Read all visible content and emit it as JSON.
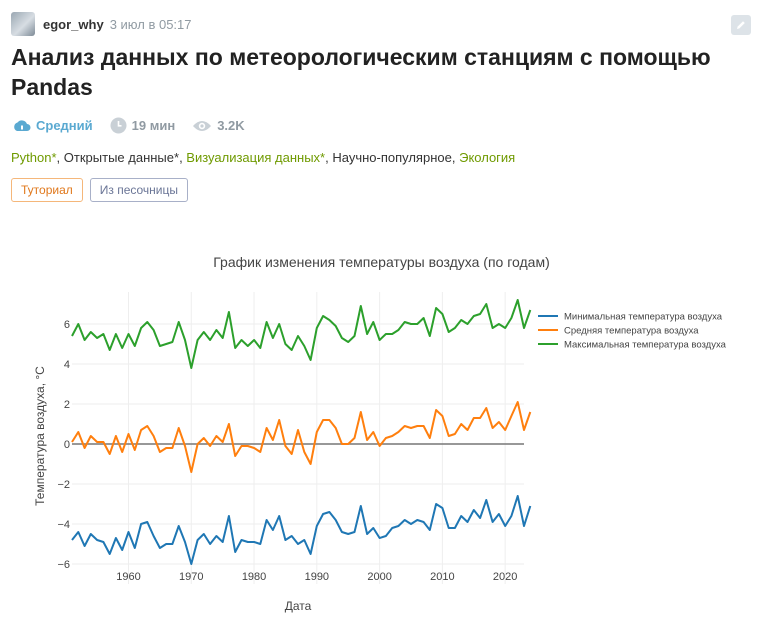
{
  "post": {
    "author": "egor_why",
    "time": "3 июл в 05:17",
    "title": "Анализ данных по метеорологическим станциям с помощью Pandas",
    "complexity": "Средний",
    "reading_time": "19 мин",
    "views": "3.2K",
    "hubs": [
      {
        "label": "Python*",
        "profiled": true
      },
      {
        "label": "Открытые данные*",
        "profiled": false
      },
      {
        "label": "Визуализация данных*",
        "profiled": true
      },
      {
        "label": "Научно-популярное",
        "profiled": false
      },
      {
        "label": "Экология",
        "profiled": true
      }
    ],
    "badges": [
      "Туториал",
      "Из песочницы"
    ]
  },
  "colors": {
    "min": "#1f77b4",
    "mean": "#ff7f0e",
    "max": "#2ca02c",
    "hub": "#6f9a00"
  },
  "chart_data": {
    "type": "line",
    "title": "График изменения температуры воздуха (по годам)",
    "xlabel": "Дата",
    "ylabel": "Температура воздуха, °C",
    "xlim": [
      1951,
      2023
    ],
    "ylim": [
      -7,
      7.6
    ],
    "xticks": [
      1960,
      1970,
      1980,
      1990,
      2000,
      2010,
      2020
    ],
    "yticks": [
      -6,
      -4,
      -2,
      0,
      2,
      4,
      6
    ],
    "grid": true,
    "zero_line": true,
    "legend": "right",
    "x_start": 1951,
    "series": [
      {
        "name": "Минимальная температура воздуха",
        "color_key": "min",
        "values": [
          -4.8,
          -4.4,
          -5.1,
          -4.5,
          -4.8,
          -4.9,
          -5.5,
          -4.7,
          -5.3,
          -4.4,
          -5.2,
          -4.0,
          -3.9,
          -4.6,
          -5.2,
          -5.0,
          -5.0,
          -4.1,
          -4.9,
          -6.0,
          -4.8,
          -4.5,
          -5.0,
          -4.6,
          -4.9,
          -3.6,
          -5.4,
          -4.8,
          -4.9,
          -4.9,
          -5.0,
          -3.8,
          -4.3,
          -3.6,
          -4.8,
          -4.6,
          -5.0,
          -4.8,
          -5.5,
          -4.1,
          -3.5,
          -3.4,
          -3.8,
          -4.4,
          -4.5,
          -4.4,
          -3.1,
          -4.5,
          -4.2,
          -4.7,
          -4.6,
          -4.2,
          -4.1,
          -3.8,
          -4.0,
          -3.8,
          -3.9,
          -4.3,
          -3.0,
          -3.2,
          -4.2,
          -4.2,
          -3.6,
          -3.9,
          -3.3,
          -3.7,
          -2.8,
          -3.9,
          -3.5,
          -4.1,
          -3.6,
          -2.6,
          -4.1,
          -3.1
        ]
      },
      {
        "name": "Средняя температура воздуха",
        "color_key": "mean",
        "values": [
          0.1,
          0.6,
          -0.2,
          0.4,
          0.1,
          0.1,
          -0.5,
          0.4,
          -0.4,
          0.5,
          -0.3,
          0.7,
          0.9,
          0.4,
          -0.4,
          -0.2,
          -0.2,
          0.8,
          -0.1,
          -1.4,
          0.0,
          0.3,
          -0.1,
          0.4,
          0.1,
          1.0,
          -0.6,
          -0.1,
          -0.1,
          -0.2,
          -0.4,
          0.8,
          0.2,
          1.2,
          -0.1,
          -0.5,
          0.7,
          -0.4,
          -1.0,
          0.6,
          1.2,
          1.2,
          0.8,
          0.0,
          0.0,
          0.3,
          1.6,
          0.2,
          0.6,
          -0.1,
          0.3,
          0.4,
          0.6,
          0.9,
          0.8,
          0.9,
          0.9,
          0.3,
          1.7,
          1.4,
          0.4,
          0.5,
          1.0,
          0.7,
          1.3,
          1.3,
          1.8,
          0.8,
          1.1,
          0.7,
          1.4,
          2.1,
          0.7,
          1.6
        ]
      },
      {
        "name": "Максимальная температура воздуха",
        "color_key": "max",
        "values": [
          5.4,
          6.0,
          5.2,
          5.6,
          5.3,
          5.5,
          4.7,
          5.5,
          4.8,
          5.5,
          4.9,
          5.8,
          6.1,
          5.7,
          4.9,
          5.0,
          5.1,
          6.1,
          5.2,
          3.8,
          5.2,
          5.6,
          5.2,
          5.7,
          5.3,
          6.6,
          4.8,
          5.2,
          4.9,
          5.2,
          4.8,
          6.1,
          5.3,
          6.0,
          5.0,
          4.7,
          5.4,
          4.9,
          4.2,
          5.8,
          6.4,
          6.2,
          5.9,
          5.3,
          5.1,
          5.4,
          6.9,
          5.5,
          6.1,
          5.2,
          5.5,
          5.5,
          5.7,
          6.1,
          6.0,
          6.0,
          6.3,
          5.4,
          6.8,
          6.5,
          5.6,
          5.8,
          6.2,
          6.0,
          6.4,
          6.5,
          7.0,
          5.8,
          6.0,
          5.8,
          6.3,
          7.2,
          5.8,
          6.7
        ]
      }
    ]
  }
}
